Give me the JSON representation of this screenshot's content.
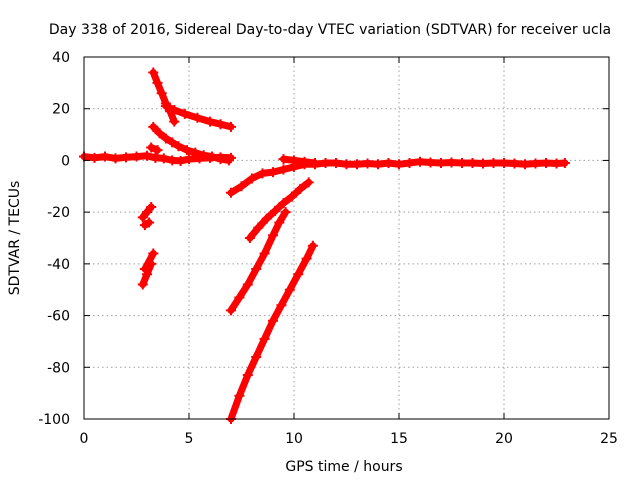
{
  "chart_data": {
    "type": "scatter",
    "title": "Day 338 of 2016, Sidereal Day-to-day VTEC variation (SDTVAR) for receiver ucla",
    "xlabel": "GPS time / hours",
    "ylabel": "SDTVAR / TECUs",
    "xlim": [
      0,
      25
    ],
    "ylim": [
      -100,
      40
    ],
    "x_ticks": [
      "0",
      "5",
      "10",
      "15",
      "20",
      "25"
    ],
    "y_ticks": [
      "-100",
      "-80",
      "-60",
      "-40",
      "-20",
      "0",
      "20",
      "40"
    ],
    "grid": true,
    "legend": "none",
    "marker": "plus",
    "color": "#ff0000",
    "series": [
      {
        "x": [
          0.0,
          0.5,
          1.0,
          1.5,
          2.0,
          2.5,
          3.0,
          3.4,
          3.8,
          4.2,
          4.6,
          5.0,
          5.5,
          6.0,
          6.5,
          7.0
        ],
        "y": [
          1.5,
          1.0,
          1.5,
          0.8,
          1.2,
          1.5,
          1.8,
          1.0,
          0.8,
          0.0,
          -0.2,
          0.5,
          0.8,
          1.0,
          1.2,
          1.0
        ]
      },
      {
        "x": [
          3.3,
          3.6,
          3.9,
          4.2,
          4.5,
          4.9,
          5.3,
          5.7,
          6.1,
          6.5,
          6.9
        ],
        "y": [
          13,
          10.5,
          8.5,
          7,
          5.5,
          4,
          3,
          2,
          1.5,
          0.5,
          0
        ]
      },
      {
        "x": [
          3.3,
          3.5,
          3.7,
          3.9,
          4.1,
          4.3
        ],
        "y": [
          34,
          30,
          26,
          22,
          19,
          15
        ]
      },
      {
        "x": [
          3.9,
          4.3,
          4.8,
          5.4,
          6.0,
          6.5,
          7.0
        ],
        "y": [
          21,
          19.5,
          18,
          16.5,
          15,
          14,
          13
        ]
      },
      {
        "x": [
          3.2,
          3.5
        ],
        "y": [
          5,
          4
        ]
      },
      {
        "x": [
          2.8,
          3.0,
          3.2
        ],
        "y": [
          -22,
          -20,
          -18
        ]
      },
      {
        "x": [
          2.9,
          3.1
        ],
        "y": [
          -25,
          -24
        ]
      },
      {
        "x": [
          2.8,
          3.0,
          3.2
        ],
        "y": [
          -48,
          -44,
          -40
        ]
      },
      {
        "x": [
          2.9,
          3.3
        ],
        "y": [
          -42,
          -36
        ]
      },
      {
        "x": [
          7.0,
          7.5,
          8.0,
          8.5,
          9.0,
          9.5,
          10.0,
          10.5,
          11.0,
          11.5,
          12.0,
          12.5,
          13.0,
          13.5,
          14.0,
          14.5,
          15.0,
          15.5,
          16.0,
          16.5,
          17.0,
          17.5,
          18.0,
          18.5,
          19.0,
          19.5,
          20.0,
          20.5,
          21.0,
          21.5,
          22.0,
          22.5,
          22.9
        ],
        "y": [
          -12.5,
          -10,
          -7,
          -5,
          -4.5,
          -3.5,
          -2.5,
          -1.5,
          -1.5,
          -1.0,
          -1.0,
          -1.5,
          -1.5,
          -1.2,
          -1.5,
          -1.0,
          -1.5,
          -1.0,
          -0.5,
          -0.8,
          -1.0,
          -0.8,
          -1.0,
          -1.0,
          -1.2,
          -1.0,
          -1.0,
          -1.2,
          -1.5,
          -1.2,
          -1.0,
          -1.2,
          -1.0
        ]
      },
      {
        "x": [
          9.5,
          10.0,
          10.5,
          11.0
        ],
        "y": [
          0.5,
          0.0,
          -0.5,
          -1.0
        ]
      },
      {
        "x": [
          7.9,
          8.3,
          8.7,
          9.1,
          9.5,
          9.9,
          10.3,
          10.7
        ],
        "y": [
          -30,
          -26,
          -22.5,
          -19.5,
          -16.5,
          -14,
          -11,
          -8.5
        ]
      },
      {
        "x": [
          7.0,
          7.4,
          7.8,
          8.2,
          8.6,
          9.0,
          9.3,
          9.6
        ],
        "y": [
          -58,
          -53,
          -48,
          -42,
          -36,
          -29,
          -24,
          -20
        ]
      },
      {
        "x": [
          7.0,
          7.4,
          7.8,
          8.2,
          8.6,
          9.0,
          9.4,
          9.8,
          10.2,
          10.6,
          10.9
        ],
        "y": [
          -100,
          -91,
          -83,
          -76,
          -69,
          -62,
          -56,
          -50,
          -44,
          -38,
          -33
        ]
      }
    ]
  }
}
